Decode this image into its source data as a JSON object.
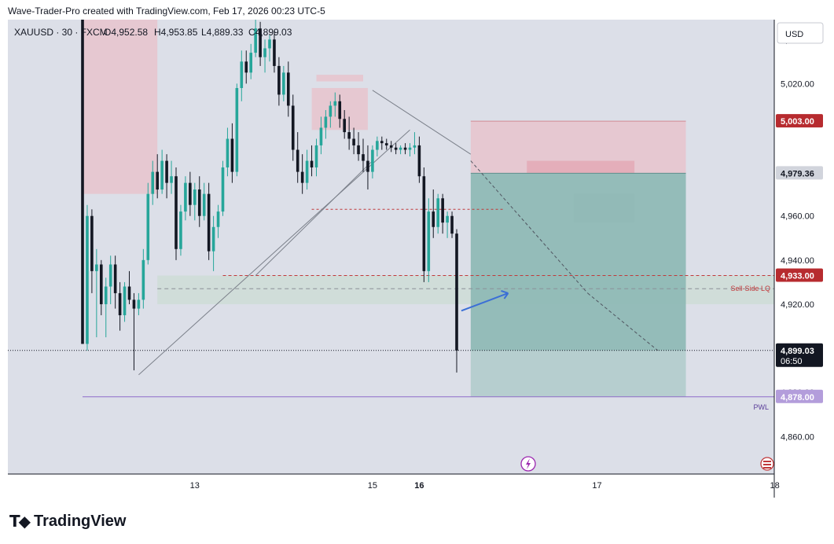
{
  "header": {
    "title": "Wave-Trader-Pro created with TradingView.com, Feb 17, 2026 00:23 UTC-5"
  },
  "legend": {
    "symbol": "XAUUSD · 30 · FXCM",
    "open": "O4,952.58",
    "high": "H4,953.85",
    "low": "L4,889.33",
    "close": "C4,899.03"
  },
  "currency_button": "USD",
  "colors": {
    "up": "#26a69a",
    "down": "#131722",
    "supply_zone": "#e8c4cc",
    "target_zone": "#8fb9b6",
    "price_line_red": "#c0393b",
    "pwl_line": "#8e6cc9",
    "arrow": "#3b6fd6"
  },
  "price_labels": [
    {
      "text": "5,003.00",
      "value": 5003,
      "style": "red"
    },
    {
      "text": "4,979.36",
      "value": 4979.36,
      "style": "gray"
    },
    {
      "text": "4,933.00",
      "value": 4933,
      "style": "red"
    },
    {
      "text": "4,899.03",
      "value": 4899.03,
      "style": "dark",
      "sub": "06:50"
    },
    {
      "text": "4,878.00",
      "value": 4878,
      "style": "purple"
    }
  ],
  "annotations": {
    "sell_side": "Sell-Side LQ",
    "pwl": "PWL"
  },
  "chart_data": {
    "type": "candlestick",
    "symbol": "XAUUSD",
    "timeframe": "30",
    "y_range": [
      4843,
      5049
    ],
    "y_ticks": [
      5040,
      5020,
      4960,
      4940,
      4920,
      4880,
      4860
    ],
    "y_tick_labels": [
      "5,040.00",
      "5,020.00",
      "4,960.00",
      "4,940.00",
      "4,920.00",
      "4,880.00",
      "4,860.00"
    ],
    "x_ticks": [
      {
        "label": "13",
        "bar": 24,
        "bold": false
      },
      {
        "label": "15",
        "bar": 62,
        "bold": false
      },
      {
        "label": "16",
        "bar": 72,
        "bold": true
      },
      {
        "label": "17",
        "bar": 110,
        "bold": false
      },
      {
        "label": "18",
        "bar": 148,
        "bold": false
      }
    ],
    "candles": [
      [
        5049,
        5049,
        4902,
        4902
      ],
      [
        4902,
        4965,
        4899,
        4960
      ],
      [
        4960,
        4963,
        4925,
        4935
      ],
      [
        4935,
        4945,
        4905,
        4938
      ],
      [
        4938,
        4940,
        4915,
        4920
      ],
      [
        4920,
        4932,
        4905,
        4928
      ],
      [
        4928,
        4942,
        4920,
        4938
      ],
      [
        4938,
        4942,
        4918,
        4925
      ],
      [
        4925,
        4930,
        4908,
        4915
      ],
      [
        4915,
        4930,
        4912,
        4928
      ],
      [
        4928,
        4935,
        4920,
        4922
      ],
      [
        4922,
        4925,
        4890,
        4918
      ],
      [
        4918,
        4925,
        4915,
        4922
      ],
      [
        4922,
        4945,
        4918,
        4940
      ],
      [
        4940,
        4975,
        4938,
        4970
      ],
      [
        4970,
        4985,
        4965,
        4980
      ],
      [
        4980,
        4988,
        4968,
        4972
      ],
      [
        4972,
        4990,
        4970,
        4985
      ],
      [
        4985,
        4988,
        4968,
        4975
      ],
      [
        4975,
        4985,
        4970,
        4978
      ],
      [
        4978,
        4982,
        4940,
        4945
      ],
      [
        4945,
        4965,
        4942,
        4962
      ],
      [
        4962,
        4978,
        4958,
        4975
      ],
      [
        4975,
        4980,
        4960,
        4965
      ],
      [
        4965,
        4975,
        4958,
        4972
      ],
      [
        4972,
        4978,
        4955,
        4960
      ],
      [
        4960,
        4975,
        4958,
        4970
      ],
      [
        4970,
        4975,
        4940,
        4944
      ],
      [
        4944,
        4960,
        4935,
        4955
      ],
      [
        4955,
        4965,
        4950,
        4962
      ],
      [
        4962,
        4985,
        4960,
        4982
      ],
      [
        4982,
        5000,
        4978,
        4995
      ],
      [
        4995,
        5002,
        4975,
        4980
      ],
      [
        4980,
        5020,
        4978,
        5018
      ],
      [
        5018,
        5035,
        5012,
        5030
      ],
      [
        5030,
        5035,
        5020,
        5025
      ],
      [
        5025,
        5038,
        5022,
        5034
      ],
      [
        5034,
        5049,
        5032,
        5045
      ],
      [
        5045,
        5048,
        5028,
        5032
      ],
      [
        5032,
        5040,
        5025,
        5036
      ],
      [
        5036,
        5042,
        5030,
        5040
      ],
      [
        5040,
        5044,
        5025,
        5028
      ],
      [
        5028,
        5032,
        5010,
        5015
      ],
      [
        5015,
        5028,
        5012,
        5025
      ],
      [
        5025,
        5030,
        5005,
        5010
      ],
      [
        5010,
        5015,
        4985,
        4990
      ],
      [
        4990,
        4998,
        4975,
        4980
      ],
      [
        4980,
        4988,
        4970,
        4975
      ],
      [
        4975,
        4990,
        4972,
        4985
      ],
      [
        4985,
        4992,
        4978,
        4982
      ],
      [
        4982,
        4995,
        4978,
        4992
      ],
      [
        4992,
        5005,
        4988,
        5000
      ],
      [
        5000,
        5008,
        4995,
        5005
      ],
      [
        5005,
        5012,
        5000,
        5010
      ],
      [
        5010,
        5016,
        5005,
        5012
      ],
      [
        5012,
        5015,
        5000,
        5004
      ],
      [
        5004,
        5008,
        4995,
        4998
      ],
      [
        4998,
        5005,
        4990,
        4995
      ],
      [
        4995,
        5000,
        4988,
        4992
      ],
      [
        4992,
        4998,
        4985,
        4988
      ],
      [
        4988,
        4995,
        4980,
        4985
      ],
      [
        4985,
        4992,
        4972,
        4980
      ],
      [
        4980,
        4992,
        4977,
        4990
      ],
      [
        4990,
        4996,
        4987,
        4994
      ],
      [
        4994,
        4996,
        4990,
        4993
      ],
      [
        4993,
        4995,
        4990,
        4992
      ],
      [
        4992,
        4994,
        4989,
        4991
      ],
      [
        4991,
        4993,
        4988,
        4990
      ],
      [
        4990,
        4992,
        4988,
        4991
      ],
      [
        4991,
        4993,
        4988,
        4990
      ],
      [
        4990,
        4993,
        4987,
        4991
      ],
      [
        4991,
        4998,
        4988,
        4992
      ],
      [
        4992,
        4996,
        4975,
        4978
      ],
      [
        4978,
        4982,
        4930,
        4935
      ],
      [
        4935,
        4968,
        4930,
        4962
      ],
      [
        4962,
        4972,
        4950,
        4955
      ],
      [
        4955,
        4970,
        4952,
        4968
      ],
      [
        4968,
        4970,
        4952,
        4957
      ],
      [
        4957,
        4962,
        4950,
        4960
      ],
      [
        4960,
        4962,
        4950,
        4952
      ],
      [
        4952,
        4954,
        4889,
        4899
      ]
    ],
    "candle_start_bar": 0,
    "zones": [
      {
        "kind": "supply",
        "from_bar": 0,
        "to_bar": 16,
        "top": 5049,
        "bottom": 4970
      },
      {
        "kind": "supply",
        "from_bar": 50,
        "to_bar": 60,
        "top": 5024,
        "bottom": 5021
      },
      {
        "kind": "supply",
        "from_bar": 49,
        "to_bar": 61,
        "top": 5018,
        "bottom": 4999
      },
      {
        "kind": "supply",
        "from_bar": 83,
        "to_bar": 129,
        "top": 5003,
        "bottom": 4979.36
      },
      {
        "kind": "supply_inner",
        "from_bar": 95,
        "to_bar": 118,
        "top": 4985,
        "bottom": 4979.36
      },
      {
        "kind": "gray",
        "from_bar": 105,
        "to_bar": 118,
        "top": 4970,
        "bottom": 4957
      },
      {
        "kind": "demand",
        "from_bar": 16,
        "to_bar": 150,
        "top": 4933,
        "bottom": 4920
      },
      {
        "kind": "target",
        "from_bar": 83,
        "to_bar": 129,
        "top": 4979.36,
        "bottom": 4899.03
      },
      {
        "kind": "target_light",
        "from_bar": 83,
        "to_bar": 129,
        "top": 4899.03,
        "bottom": 4878
      }
    ],
    "lines": {
      "sell_side_lq": 4933,
      "dashed_mid": 4927,
      "pwl": 4878,
      "last_price": 4899.03,
      "red_dash_short": {
        "value": 4963,
        "from_bar": 49,
        "to_bar": 90
      }
    },
    "trend_lines": [
      {
        "from": [
          12,
          4888
        ],
        "to": [
          70,
          4999
        ]
      },
      {
        "from": [
          37,
          4933
        ],
        "to": [
          62,
          4985
        ]
      },
      {
        "from": [
          62,
          5017
        ],
        "to": [
          83,
          4988
        ]
      },
      {
        "from": [
          83,
          4985
        ],
        "to": [
          108,
          4925
        ],
        "dashed": true
      },
      {
        "from": [
          108,
          4925
        ],
        "to": [
          123,
          4899
        ],
        "dashed": true
      }
    ]
  }
}
